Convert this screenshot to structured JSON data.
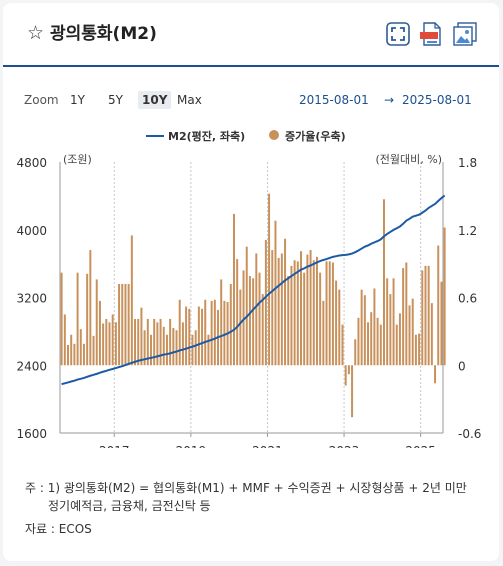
{
  "header": {
    "title": "광의통화(M2)",
    "star_icon": "star-outline-icon"
  },
  "toolbar": {
    "zoom_label": "Zoom",
    "buttons": [
      "1Y",
      "5Y",
      "10Y",
      "Max"
    ],
    "active": "10Y"
  },
  "date_range": {
    "start": "2015-08-01",
    "arrow": "→",
    "end": "2025-08-01"
  },
  "colors": {
    "line": "#1d5aa6",
    "bars": "#c8905a",
    "accent": "#1d4f91"
  },
  "chart_data": {
    "type": "bar+line",
    "title": "",
    "legend": [
      {
        "name": "M2(평잔, 좌축)",
        "type": "line"
      },
      {
        "name": "증가율(우축)",
        "type": "bar"
      }
    ],
    "legend_position": "top-center",
    "left_axis": {
      "unit_label": "(조원)",
      "ylim": [
        1600,
        4800
      ],
      "ticks": [
        "1600",
        "2400",
        "3200",
        "4000",
        "4800"
      ]
    },
    "right_axis": {
      "unit_label": "(전월대비, %)",
      "ylim": [
        -0.6,
        1.8
      ],
      "ticks": [
        "-0.6",
        "0",
        "0.6",
        "1.2",
        "1.8"
      ]
    },
    "x_ticks": [
      "2017",
      "2019",
      "2021",
      "2023",
      "2025"
    ],
    "x_range": [
      "2015-08",
      "2025-08"
    ],
    "grid": "vertical dashed at year ticks",
    "series": [
      {
        "name": "M2(평잔, 좌축)",
        "axis": "left",
        "start": "2015-08",
        "frequency": "monthly",
        "values": [
          2177,
          2187,
          2197,
          2208,
          2218,
          2231,
          2240,
          2250,
          2263,
          2276,
          2287,
          2298,
          2312,
          2323,
          2334,
          2346,
          2356,
          2367,
          2379,
          2389,
          2402,
          2416,
          2429,
          2441,
          2453,
          2462,
          2470,
          2479,
          2487,
          2495,
          2505,
          2515,
          2525,
          2532,
          2540,
          2552,
          2562,
          2575,
          2585,
          2596,
          2609,
          2620,
          2632,
          2647,
          2660,
          2675,
          2687,
          2701,
          2714,
          2731,
          2744,
          2759,
          2775,
          2795,
          2818,
          2852,
          2897,
          2939,
          2972,
          3014,
          3057,
          3096,
          3139,
          3172,
          3208,
          3245,
          3275,
          3308,
          3339,
          3370,
          3401,
          3426,
          3453,
          3478,
          3503,
          3529,
          3544,
          3564,
          3579,
          3596,
          3614,
          3631,
          3643,
          3654,
          3667,
          3680,
          3688,
          3696,
          3700,
          3704,
          3709,
          3719,
          3735,
          3755,
          3778,
          3800,
          3815,
          3835,
          3851,
          3866,
          3886,
          3922,
          3951,
          3974,
          3998,
          4018,
          4038,
          4070,
          4107,
          4129,
          4154,
          4166,
          4177,
          4201,
          4226,
          4258,
          4281,
          4304,
          4339,
          4373,
          4404
        ]
      },
      {
        "name": "증가율(우축)",
        "axis": "right",
        "start": "2015-08",
        "frequency": "monthly",
        "values": [
          0.82,
          0.45,
          0.18,
          0.27,
          0.19,
          0.82,
          0.32,
          0.19,
          0.81,
          1.02,
          0.26,
          0.76,
          0.57,
          0.37,
          0.41,
          0.38,
          0.45,
          0.38,
          0.72,
          0.72,
          0.72,
          0.72,
          1.15,
          0.41,
          0.41,
          0.51,
          0.31,
          0.41,
          0.27,
          0.41,
          0.38,
          0.41,
          0.34,
          0.27,
          0.41,
          0.33,
          0.31,
          0.58,
          0.38,
          0.52,
          0.5,
          0.27,
          0.31,
          0.52,
          0.5,
          0.58,
          0.27,
          0.57,
          0.58,
          0.49,
          0.76,
          0.57,
          0.56,
          0.72,
          1.34,
          0.94,
          0.67,
          0.84,
          1.05,
          0.79,
          0.77,
          0.99,
          0.82,
          0.63,
          1.11,
          1.52,
          1.02,
          1.28,
          0.95,
          0.99,
          1.12,
          0.79,
          0.88,
          0.93,
          0.92,
          1.01,
          0.82,
          0.98,
          1.02,
          0.93,
          0.96,
          0.82,
          0.57,
          0.92,
          0.92,
          0.91,
          0.75,
          0.67,
          0.36,
          -0.18,
          -0.08,
          -0.46,
          0.23,
          0.42,
          0.67,
          0.62,
          0.38,
          0.47,
          0.68,
          0.42,
          0.36,
          1.47,
          0.77,
          0.63,
          0.77,
          0.36,
          0.46,
          0.86,
          0.91,
          0.53,
          0.59,
          0.27,
          0.28,
          0.84,
          0.88,
          0.88,
          0.55,
          -0.16,
          1.06,
          0.74,
          1.22
        ]
      }
    ]
  },
  "notes": {
    "line1": "주 : 1)  광의통화(M2) = 협의통화(M1) + MMF + 수익증권 + 시장형상품 + 2년 미만",
    "line2": "정기예적금, 금융채, 금전신탁 등",
    "source": "자료 :  ECOS"
  }
}
